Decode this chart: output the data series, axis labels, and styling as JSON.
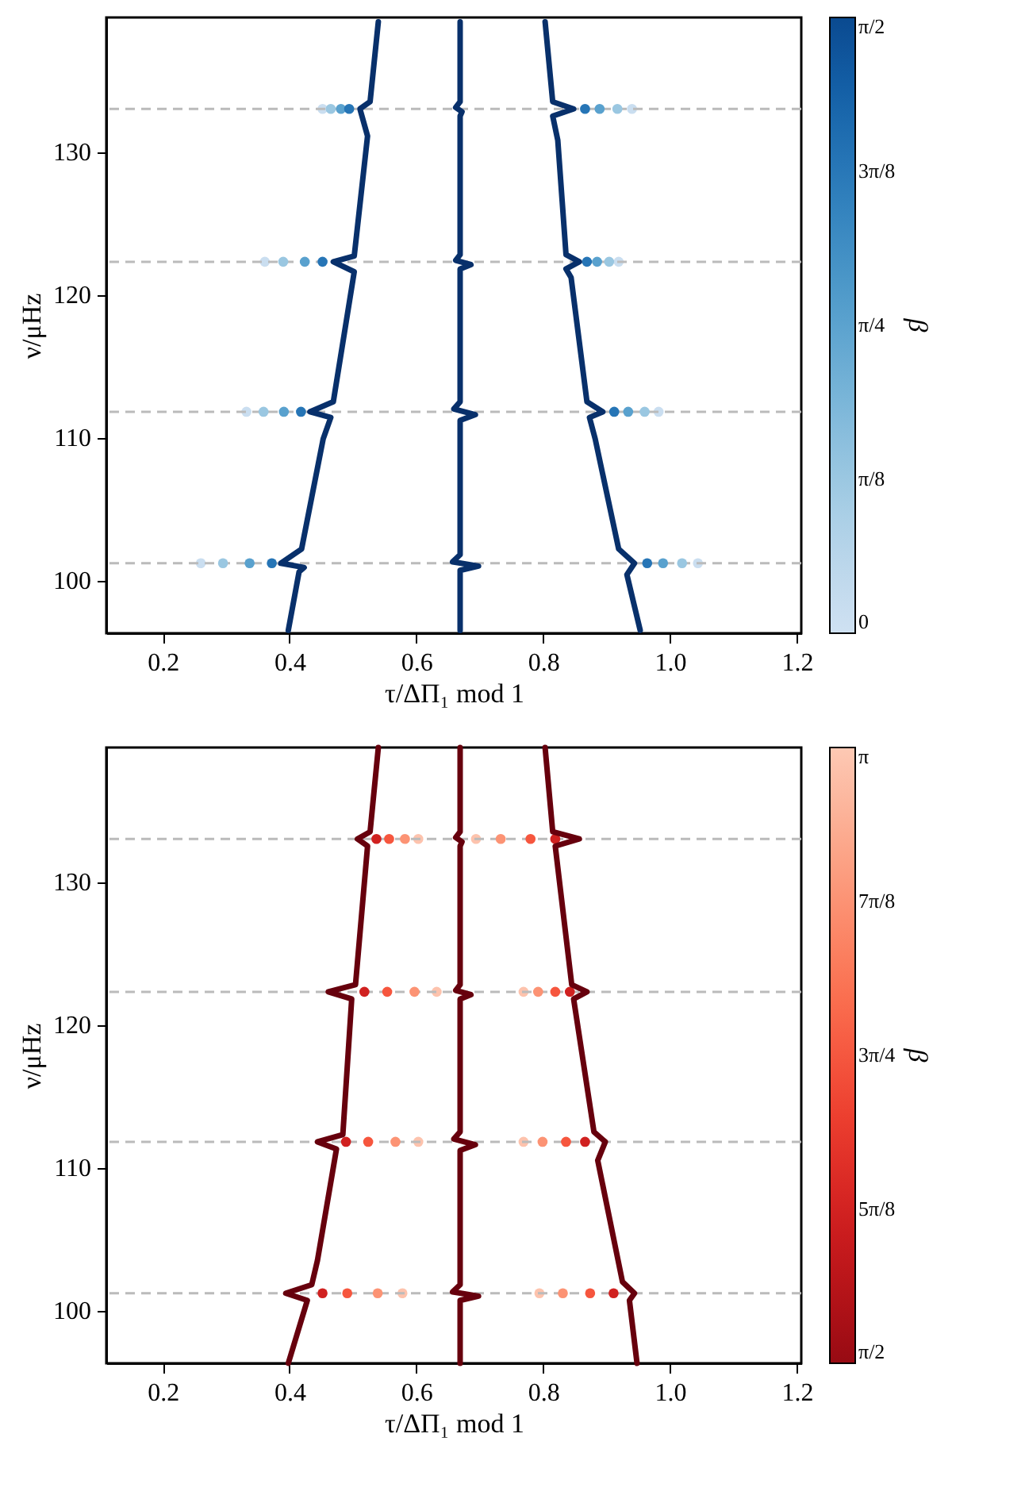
{
  "chart_data": [
    {
      "type": "scatter",
      "xlabel": "τ/ΔΠ₁  mod 1",
      "ylabel": "ν/μHz",
      "clabel": "β",
      "xlim": [
        0.111,
        1.207
      ],
      "ylim": [
        96.3,
        139.4
      ],
      "xticks": [
        0.2,
        0.4,
        0.6,
        0.8,
        {
          "value": 1,
          "label": "1.0"
        },
        1.2
      ],
      "yticks": [
        100,
        110,
        120,
        130
      ],
      "clim": [
        0,
        1.5708
      ],
      "cticks": [
        0,
        {
          "value": 0.3927,
          "label": "π/8"
        },
        {
          "value": 0.7854,
          "label": "π/4"
        },
        {
          "value": 1.1781,
          "label": "3π/8"
        },
        {
          "value": 1.5708,
          "label": "π/2"
        }
      ],
      "grid": false,
      "ref_lines": [
        {
          "axis": "y",
          "value": 101.2,
          "color": "#bbbbbb",
          "line_style": "dashed"
        },
        {
          "axis": "y",
          "value": 111.8,
          "color": "#bbbbbb",
          "line_style": "dashed"
        },
        {
          "axis": "y",
          "value": 122.3,
          "color": "#bbbbbb",
          "line_style": "dashed"
        },
        {
          "axis": "y",
          "value": 133.0,
          "color": "#bbbbbb",
          "line_style": "dashed"
        }
      ],
      "series": [
        {
          "x": [
            0.26,
            1.044,
            0.332,
            0.982,
            0.361,
            0.919,
            0.452,
            0.94
          ],
          "values": [
            101.2,
            101.2,
            111.8,
            111.8,
            122.3,
            122.3,
            133.0,
            133.0
          ],
          "cvalues": [
            0.05,
            0.05,
            0.05,
            0.05,
            0.05,
            0.05,
            0.05,
            0.05
          ]
        },
        {
          "x": [
            0.295,
            1.019,
            0.359,
            0.96,
            0.39,
            0.904,
            0.465,
            0.917
          ],
          "values": [
            101.2,
            101.2,
            111.8,
            111.8,
            122.3,
            122.3,
            133.0,
            133.0
          ],
          "cvalues": [
            0.4,
            0.4,
            0.4,
            0.4,
            0.4,
            0.4,
            0.4,
            0.4
          ]
        },
        {
          "x": [
            0.337,
            0.989,
            0.391,
            0.934,
            0.424,
            0.885,
            0.481,
            0.889
          ],
          "values": [
            101.2,
            101.2,
            111.8,
            111.8,
            122.3,
            122.3,
            133.0,
            133.0
          ],
          "cvalues": [
            0.8,
            0.8,
            0.8,
            0.8,
            0.8,
            0.8,
            0.8,
            0.8
          ]
        },
        {
          "x": [
            0.372,
            0.964,
            0.418,
            0.912,
            0.452,
            0.869,
            0.494,
            0.866
          ],
          "values": [
            101.2,
            101.2,
            111.8,
            111.8,
            122.3,
            122.3,
            133.0,
            133.0
          ],
          "cvalues": [
            1.2,
            1.2,
            1.2,
            1.2,
            1.2,
            1.2,
            1.2,
            1.2
          ]
        },
        {
          "type": "line",
          "color": "#08306b",
          "x": [
            0.398,
            0.415,
            0.423,
            0.386,
            0.419,
            0.453,
            0.465,
            0.432,
            0.469,
            0.502,
            0.469,
            0.502,
            0.523,
            0.511,
            0.527,
            0.54
          ],
          "values": [
            96.5,
            100.6,
            100.9,
            101.2,
            102.2,
            109.9,
            111.4,
            111.8,
            112.5,
            121.6,
            122.3,
            122.7,
            131.1,
            133.0,
            133.5,
            139.1
          ]
        },
        {
          "type": "line",
          "color": "#08306b",
          "x": [
            0.669,
            0.669,
            0.698,
            0.657,
            0.669,
            0.669,
            0.693,
            0.659,
            0.669,
            0.669,
            0.686,
            0.662,
            0.669,
            0.669,
            0.672,
            0.662,
            0.669,
            0.669
          ],
          "values": [
            96.5,
            100.7,
            101.0,
            101.3,
            101.8,
            111.2,
            111.6,
            112.0,
            112.5,
            121.8,
            122.1,
            122.4,
            122.8,
            132.5,
            132.8,
            133.1,
            133.5,
            139.1
          ]
        },
        {
          "type": "line",
          "color": "#08306b",
          "x": [
            0.953,
            0.932,
            0.944,
            0.919,
            0.882,
            0.873,
            0.894,
            0.869,
            0.844,
            0.836,
            0.857,
            0.836,
            0.823,
            0.815,
            0.848,
            0.815,
            0.803
          ],
          "values": [
            96.5,
            100.4,
            101.2,
            102.2,
            109.9,
            111.4,
            111.8,
            112.5,
            121.2,
            121.8,
            122.3,
            122.8,
            130.8,
            132.5,
            133.0,
            133.5,
            139.1
          ]
        }
      ]
    },
    {
      "type": "scatter",
      "xlabel": "τ/ΔΠ₁  mod 1",
      "ylabel": "ν/μHz",
      "clabel": "β",
      "xlim": [
        0.111,
        1.207
      ],
      "ylim": [
        96.3,
        139.4
      ],
      "xticks": [
        0.2,
        0.4,
        0.6,
        0.8,
        {
          "value": 1,
          "label": "1.0"
        },
        1.2
      ],
      "yticks": [
        100,
        110,
        120,
        130
      ],
      "clim": [
        1.5708,
        3.1416
      ],
      "cticks": [
        {
          "value": 1.5708,
          "label": "π/2"
        },
        {
          "value": 1.9635,
          "label": "5π/8"
        },
        {
          "value": 2.3562,
          "label": "3π/4"
        },
        {
          "value": 2.7489,
          "label": "7π/8"
        },
        {
          "value": 3.1416,
          "label": "π"
        }
      ],
      "grid": false,
      "ref_lines": [
        {
          "axis": "y",
          "value": 101.2,
          "color": "#bbbbbb",
          "line_style": "dashed"
        },
        {
          "axis": "y",
          "value": 111.8,
          "color": "#bbbbbb",
          "line_style": "dashed"
        },
        {
          "axis": "y",
          "value": 122.3,
          "color": "#bbbbbb",
          "line_style": "dashed"
        },
        {
          "axis": "y",
          "value": 133.0,
          "color": "#bbbbbb",
          "line_style": "dashed"
        }
      ],
      "series": [
        {
          "x": [
            0.578,
            0.794,
            0.603,
            0.769,
            0.632,
            0.769,
            0.603,
            0.694
          ],
          "values": [
            101.2,
            101.2,
            111.8,
            111.8,
            122.3,
            122.3,
            133.0,
            133.0
          ],
          "cvalues": [
            3.1,
            3.1,
            3.1,
            3.1,
            3.1,
            3.1,
            3.1,
            3.1
          ]
        },
        {
          "x": [
            0.539,
            0.831,
            0.567,
            0.799,
            0.597,
            0.792,
            0.582,
            0.733
          ],
          "values": [
            101.2,
            101.2,
            111.8,
            111.8,
            122.3,
            122.3,
            133.0,
            133.0
          ],
          "cvalues": [
            2.75,
            2.75,
            2.75,
            2.75,
            2.75,
            2.75,
            2.75,
            2.75
          ]
        },
        {
          "x": [
            0.491,
            0.874,
            0.524,
            0.836,
            0.554,
            0.819,
            0.557,
            0.78
          ],
          "values": [
            101.2,
            101.2,
            111.8,
            111.8,
            122.3,
            122.3,
            133.0,
            133.0
          ],
          "cvalues": [
            2.35,
            2.35,
            2.35,
            2.35,
            2.35,
            2.35,
            2.35,
            2.35
          ]
        },
        {
          "x": [
            0.452,
            0.911,
            0.489,
            0.866,
            0.518,
            0.842,
            0.537,
            0.819
          ],
          "values": [
            101.2,
            101.2,
            111.8,
            111.8,
            122.3,
            122.3,
            133.0,
            133.0
          ],
          "cvalues": [
            1.95,
            1.95,
            1.95,
            1.95,
            1.95,
            1.95,
            1.95,
            1.95
          ]
        },
        {
          "type": "line",
          "color": "#67000d",
          "x": [
            0.398,
            0.428,
            0.394,
            0.435,
            0.444,
            0.474,
            0.444,
            0.484,
            0.498,
            0.461,
            0.504,
            0.523,
            0.507,
            0.527,
            0.54
          ],
          "values": [
            96.3,
            100.7,
            101.2,
            101.8,
            103.5,
            111.3,
            111.8,
            112.3,
            121.8,
            122.3,
            122.8,
            132.5,
            133.0,
            133.5,
            139.4
          ]
        },
        {
          "type": "line",
          "color": "#67000d",
          "x": [
            0.669,
            0.669,
            0.698,
            0.657,
            0.669,
            0.669,
            0.693,
            0.659,
            0.669,
            0.669,
            0.686,
            0.662,
            0.669,
            0.669,
            0.672,
            0.662,
            0.669,
            0.669
          ],
          "values": [
            96.3,
            100.7,
            101.0,
            101.3,
            101.8,
            111.2,
            111.6,
            112.0,
            112.5,
            121.8,
            122.1,
            122.4,
            122.8,
            132.5,
            132.8,
            133.1,
            133.5,
            139.4
          ]
        },
        {
          "type": "line",
          "color": "#67000d",
          "x": [
            0.948,
            0.936,
            0.944,
            0.925,
            0.886,
            0.898,
            0.88,
            0.848,
            0.869,
            0.845,
            0.819,
            0.857,
            0.815,
            0.803
          ],
          "values": [
            96.3,
            100.7,
            101.2,
            102.0,
            110.5,
            111.8,
            112.5,
            121.8,
            122.3,
            122.8,
            132.5,
            133.0,
            133.5,
            139.4
          ]
        }
      ]
    }
  ]
}
